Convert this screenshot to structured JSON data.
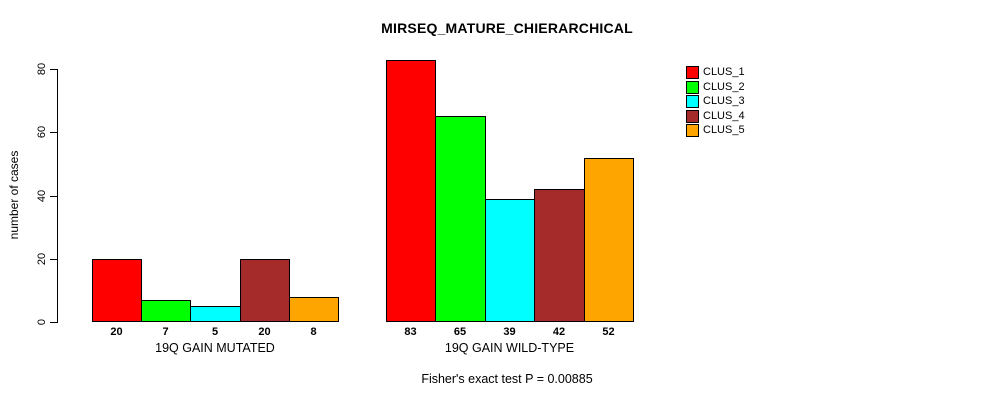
{
  "chart_data": {
    "type": "bar",
    "title": "MIRSEQ_MATURE_CHIERARCHICAL",
    "ylabel": "number of cases",
    "xlabel": "",
    "ylim": [
      0,
      80
    ],
    "yticks": [
      0,
      20,
      40,
      60,
      80
    ],
    "grid": false,
    "bar_value_labels": true,
    "legend_position": "top-right",
    "categories": [
      "19Q GAIN MUTATED",
      "19Q GAIN WILD-TYPE"
    ],
    "series": [
      {
        "name": "CLUS_1",
        "color": "#FF0000",
        "values": [
          20,
          83
        ]
      },
      {
        "name": "CLUS_2",
        "color": "#00FF00",
        "values": [
          7,
          65
        ]
      },
      {
        "name": "CLUS_3",
        "color": "#00FFFF",
        "values": [
          5,
          39
        ]
      },
      {
        "name": "CLUS_4",
        "color": "#A52A2A",
        "values": [
          20,
          42
        ]
      },
      {
        "name": "CLUS_5",
        "color": "#FFA500",
        "values": [
          8,
          52
        ]
      }
    ],
    "annotation": "Fisher's exact test P = 0.00885",
    "axis_color": "#000000",
    "bar_border_color": "#000000",
    "background_color": "#FFFFFF"
  }
}
